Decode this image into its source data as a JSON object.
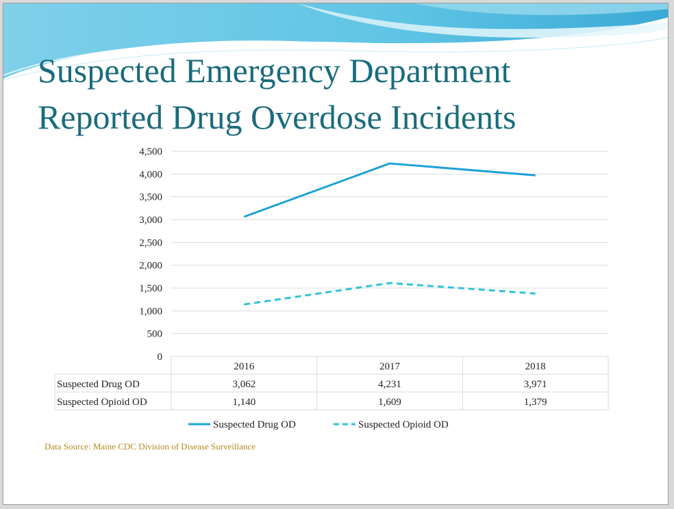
{
  "slide": {
    "title_line1": "Suspected Emergency Department",
    "title_line2": "Reported Drug Overdose Incidents",
    "source": "Data Source:  Maine CDC Division of Disease Surveillance"
  },
  "colors": {
    "title": "#1a6b7c",
    "drug_series": "#1ba1d6",
    "opioid_series": "#2ec4d6",
    "source_text": "#b08a1e",
    "grid": "#d9d9d9"
  },
  "chart_data": {
    "type": "line",
    "categories": [
      "2016",
      "2017",
      "2018"
    ],
    "series": [
      {
        "name": "Suspected Drug OD",
        "values": [
          3062,
          4231,
          3971
        ],
        "display": [
          "3,062",
          "4,231",
          "3,971"
        ],
        "style": "solid",
        "color": "#1ba1d6"
      },
      {
        "name": "Suspected Opioid OD",
        "values": [
          1140,
          1609,
          1379
        ],
        "display": [
          "1,140",
          "1,609",
          "1,379"
        ],
        "style": "dashed",
        "color": "#2ec4d6"
      }
    ],
    "ylim": [
      0,
      4500
    ],
    "yticks": [
      "0",
      "500",
      "1,000",
      "1,500",
      "2,000",
      "2,500",
      "3,000",
      "3,500",
      "4,000",
      "4,500"
    ],
    "grid": true,
    "data_table": true,
    "legend_position": "bottom"
  }
}
